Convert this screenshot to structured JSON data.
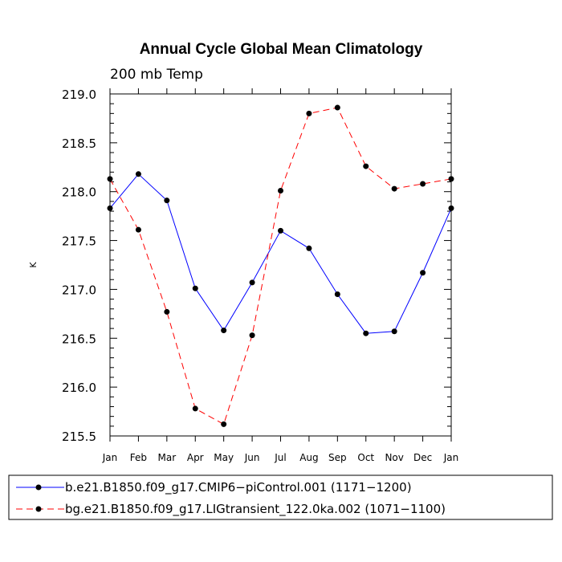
{
  "chart_data": {
    "type": "line",
    "title": "Annual Cycle Global Mean Climatology",
    "subtitle": "200 mb Temp",
    "xlabel": "",
    "ylabel": "K",
    "categories": [
      "Jan",
      "Feb",
      "Mar",
      "Apr",
      "May",
      "Jun",
      "Jul",
      "Aug",
      "Sep",
      "Oct",
      "Nov",
      "Dec",
      "Jan"
    ],
    "ylim": [
      215.5,
      219.0
    ],
    "yticks": [
      "215.5",
      "216.0",
      "216.5",
      "217.0",
      "217.5",
      "218.0",
      "218.5",
      "219.0"
    ],
    "grid": false,
    "legend_position": "bottom",
    "series": [
      {
        "name": "b.e21.B1850.f09_g17.CMIP6−piControl.001 (1171−1200)",
        "color": "#0000ff",
        "dash": "solid",
        "values": [
          217.83,
          218.18,
          217.91,
          217.01,
          216.58,
          217.07,
          217.6,
          217.42,
          216.95,
          216.55,
          216.57,
          217.17,
          217.83
        ]
      },
      {
        "name": "bg.e21.B1850.f09_g17.LIGtransient_122.0ka.002 (1071−1100)",
        "color": "#ff0000",
        "dash": "dashed",
        "values": [
          218.13,
          217.61,
          216.77,
          215.78,
          215.62,
          216.53,
          218.01,
          218.8,
          218.86,
          218.26,
          218.03,
          218.08,
          218.13
        ]
      }
    ]
  }
}
